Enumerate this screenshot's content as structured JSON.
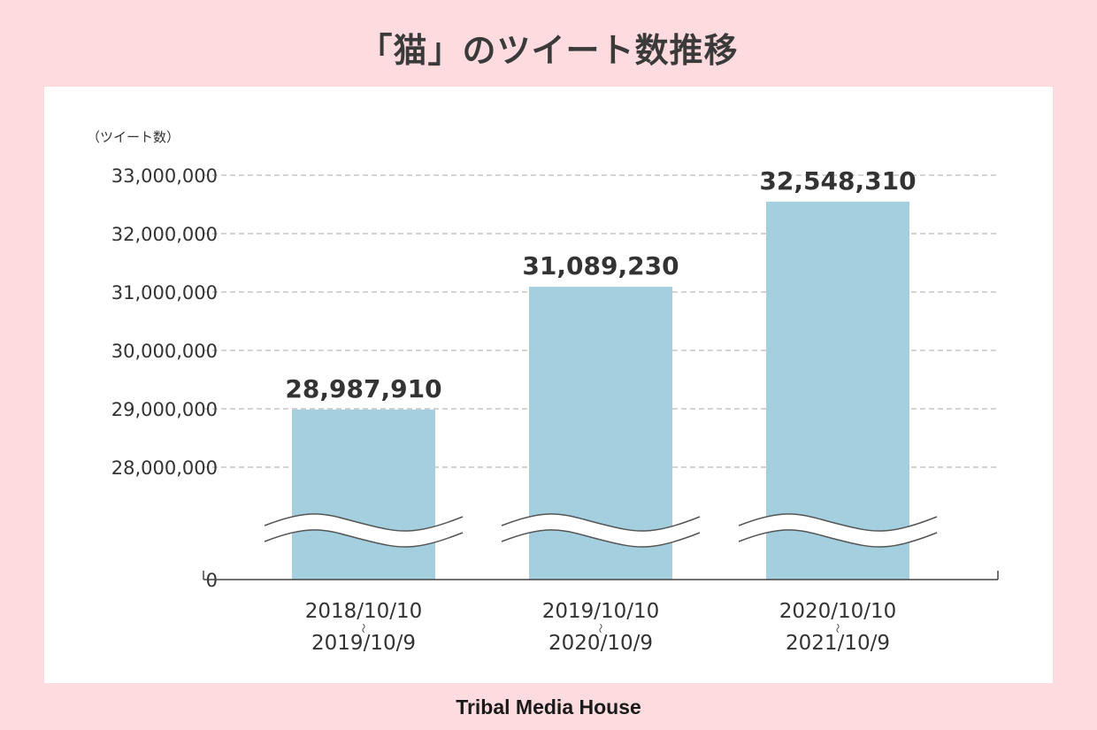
{
  "title": "「猫」のツイート数推移",
  "footer": "Tribal Media House",
  "colors": {
    "background": "#fddbdf",
    "bar": "#a3cfdf",
    "grid": "#aaaaaa",
    "text": "#333333"
  },
  "chart_data": {
    "type": "bar",
    "ylabel": "（ツイート数）",
    "categories": [
      [
        "2018/10/10",
        "～",
        "2019/10/9"
      ],
      [
        "2019/10/10",
        "～",
        "2020/10/9"
      ],
      [
        "2020/10/10",
        "～",
        "2021/10/9"
      ]
    ],
    "values": [
      28987910,
      31089230,
      32548310
    ],
    "value_labels": [
      "28,987,910",
      "31,089,230",
      "32,548,310"
    ],
    "yticks": [
      0,
      28000000,
      29000000,
      30000000,
      31000000,
      32000000,
      33000000
    ],
    "ytick_labels": [
      "0",
      "28,000,000",
      "29,000,000",
      "30,000,000",
      "31,000,000",
      "32,000,000",
      "33,000,000"
    ],
    "axis_break": true,
    "grid": "dashed"
  }
}
